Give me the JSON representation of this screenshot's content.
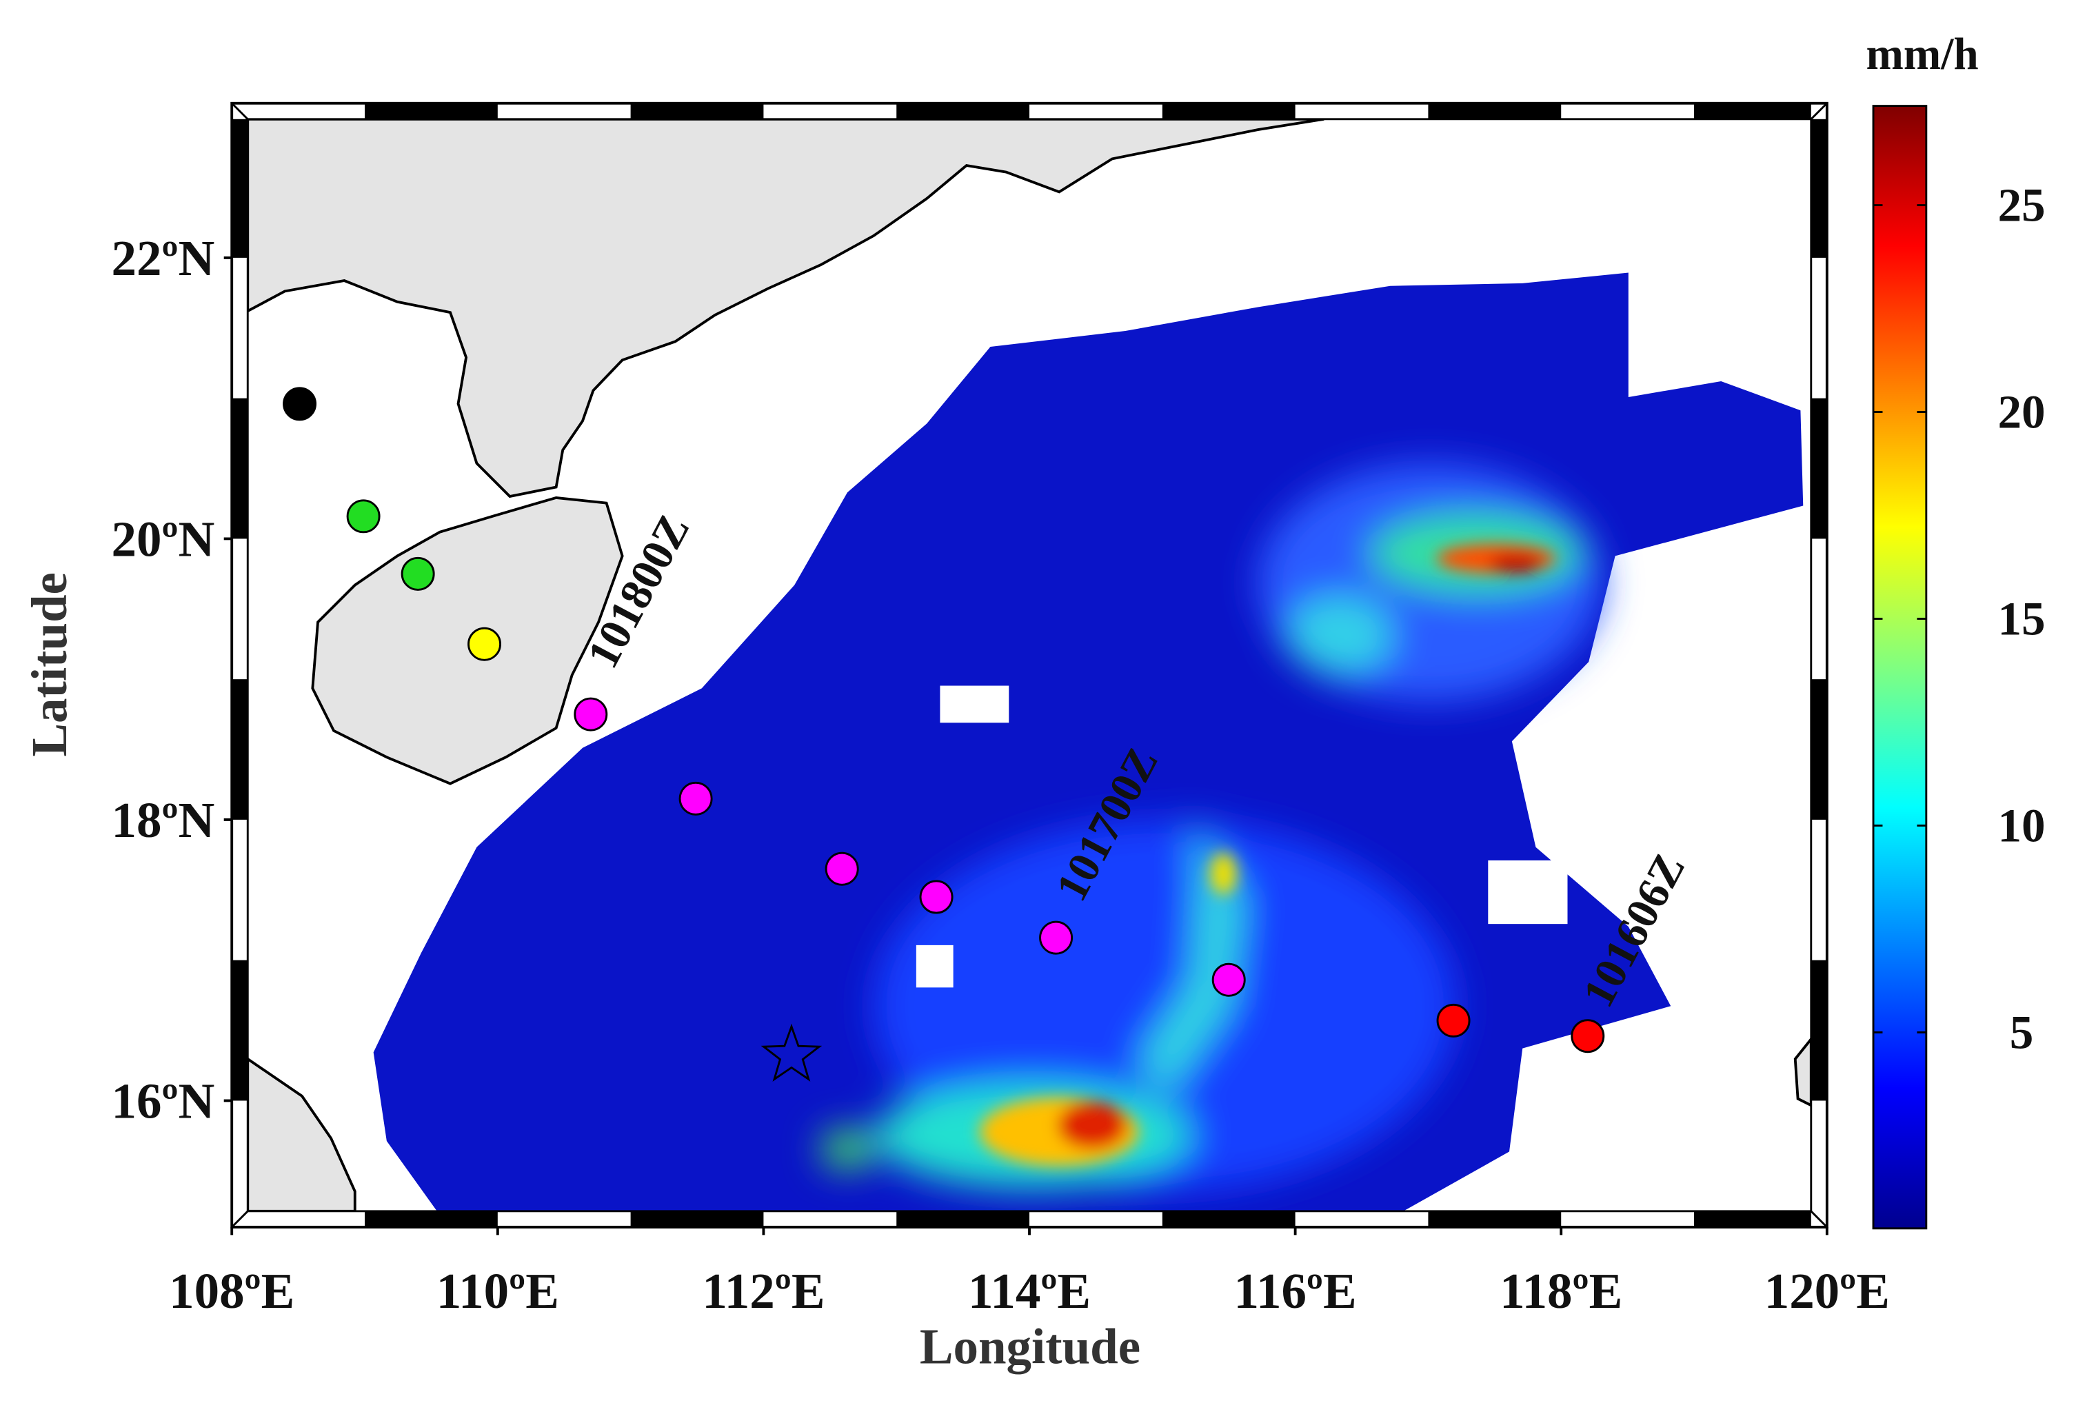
{
  "chart_data": {
    "type": "scatter",
    "xlabel": "Longitude",
    "ylabel": "Latitude",
    "xlim": [
      108,
      120
    ],
    "ylim": [
      15.1,
      23.1
    ],
    "xticks": [
      {
        "value": 108,
        "label": "108ºE"
      },
      {
        "value": 110,
        "label": "110ºE"
      },
      {
        "value": 112,
        "label": "112ºE"
      },
      {
        "value": 114,
        "label": "114ºE"
      },
      {
        "value": 116,
        "label": "116ºE"
      },
      {
        "value": 118,
        "label": "118ºE"
      },
      {
        "value": 120,
        "label": "120ºE"
      }
    ],
    "yticks": [
      {
        "value": 16,
        "label": "16ºN"
      },
      {
        "value": 18,
        "label": "18ºN"
      },
      {
        "value": 20,
        "label": "20ºN"
      },
      {
        "value": 22,
        "label": "22ºN"
      }
    ],
    "x": [
      108.51,
      108.99,
      109.4,
      109.9,
      110.7,
      111.49,
      112.59,
      113.3,
      114.2,
      115.5,
      117.19,
      118.2
    ],
    "y": [
      20.96,
      20.16,
      19.75,
      19.25,
      18.75,
      18.15,
      17.65,
      17.45,
      17.16,
      16.86,
      16.57,
      16.46
    ],
    "colors": [
      "#000000",
      "#22dd22",
      "#22dd22",
      "#ffff00",
      "#ff00ff",
      "#ff00ff",
      "#ff00ff",
      "#ff00ff",
      "#ff00ff",
      "#ff00ff",
      "#ff0000",
      "#ff0000"
    ],
    "marker": {
      "x": 112.21,
      "y": 16.32,
      "shape": "star"
    },
    "annotations": [
      "101800Z",
      "101700Z",
      "101606Z"
    ],
    "colorbar": {
      "label": "mm/h",
      "clim": [
        0.26,
        27.4
      ],
      "ticks": [
        5,
        10,
        15,
        20,
        25
      ],
      "colormap": "jet"
    }
  }
}
